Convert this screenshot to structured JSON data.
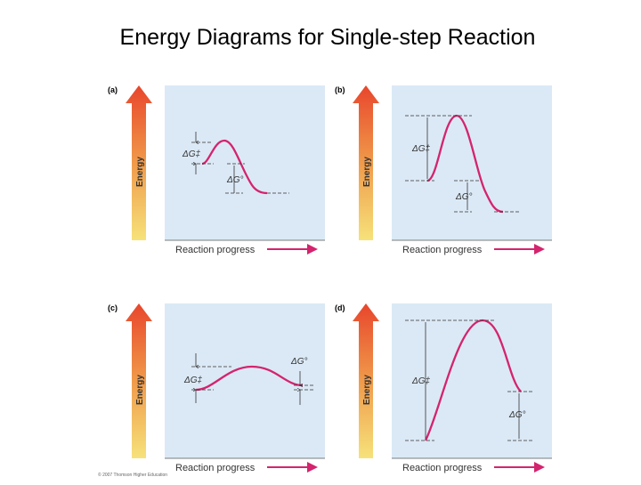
{
  "title": "Energy Diagrams for Single-step Reaction",
  "labels": {
    "energy": "Energy",
    "reaction_progress": "Reaction progress",
    "delta_g_activation": "ΔG‡",
    "delta_g_reaction": "ΔG°"
  },
  "panels": [
    {
      "letter": "(a)"
    },
    {
      "letter": "(b)"
    },
    {
      "letter": "(c)"
    },
    {
      "letter": "(d)"
    }
  ],
  "copyright": "© 2007 Thomson Higher Education",
  "colors": {
    "curve": "#d4246e",
    "panel_bg": "#dbe9f6",
    "arrow_top": "#e8462c",
    "arrow_bottom": "#f6e27a",
    "dash": "#333333"
  }
}
